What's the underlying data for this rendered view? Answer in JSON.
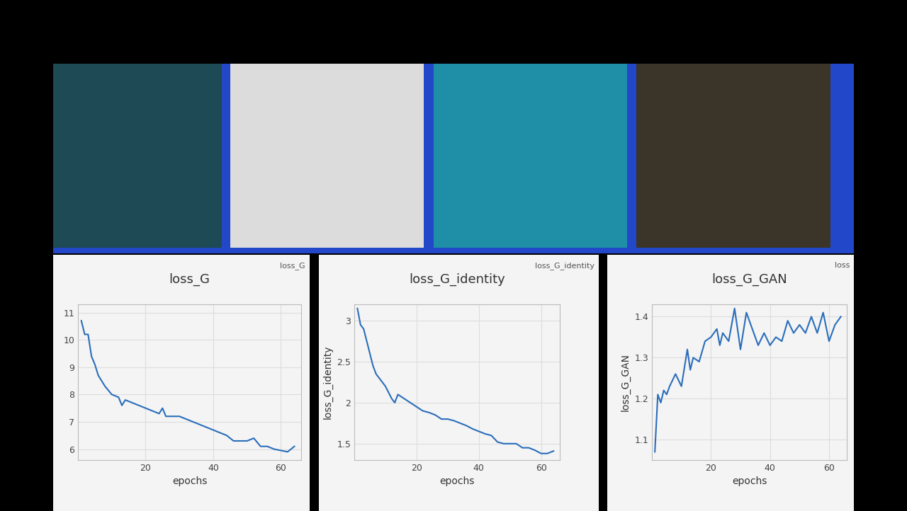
{
  "chart_data": [
    {
      "type": "line",
      "title": "loss_G",
      "x_label": "epochs",
      "annotations": [
        "loss_G"
      ],
      "x": [
        1,
        2,
        3,
        4,
        5,
        6,
        8,
        10,
        12,
        13,
        14,
        16,
        18,
        20,
        22,
        24,
        25,
        26,
        28,
        30,
        32,
        34,
        36,
        38,
        40,
        42,
        44,
        46,
        48,
        50,
        52,
        54,
        56,
        58,
        60,
        62,
        64
      ],
      "values": [
        10.7,
        10.2,
        10.2,
        9.4,
        9.1,
        8.7,
        8.3,
        8.0,
        7.9,
        7.6,
        7.8,
        7.7,
        7.6,
        7.5,
        7.4,
        7.3,
        7.5,
        7.2,
        7.2,
        7.2,
        7.1,
        7.0,
        6.9,
        6.8,
        6.7,
        6.6,
        6.5,
        6.3,
        6.3,
        6.3,
        6.4,
        6.1,
        6.1,
        6.0,
        5.95,
        5.9,
        6.1
      ],
      "color": "#2a6ebb",
      "xlim": [
        0,
        66
      ],
      "xticks": [
        20,
        40,
        60
      ],
      "ylim": [
        5.6,
        11.3
      ],
      "yticks": [
        6,
        7,
        8,
        9,
        10,
        11
      ],
      "grid": true
    },
    {
      "type": "line",
      "title": "loss_G_identity",
      "x_label": "epochs",
      "y_label": "loss_G_identity",
      "annotations": [
        "loss_G_identity"
      ],
      "x": [
        1,
        2,
        3,
        4,
        5,
        6,
        7,
        8,
        10,
        12,
        13,
        14,
        16,
        18,
        20,
        22,
        24,
        26,
        28,
        30,
        32,
        34,
        36,
        38,
        40,
        42,
        44,
        46,
        48,
        50,
        52,
        54,
        56,
        58,
        60,
        62,
        64
      ],
      "values": [
        3.15,
        2.95,
        2.9,
        2.75,
        2.6,
        2.45,
        2.35,
        2.3,
        2.2,
        2.05,
        2.0,
        2.1,
        2.05,
        2.0,
        1.95,
        1.9,
        1.88,
        1.85,
        1.8,
        1.8,
        1.78,
        1.75,
        1.72,
        1.68,
        1.65,
        1.62,
        1.6,
        1.52,
        1.5,
        1.5,
        1.5,
        1.45,
        1.45,
        1.42,
        1.38,
        1.38,
        1.41
      ],
      "color": "#2a6ebb",
      "xlim": [
        0,
        66
      ],
      "xticks": [
        20,
        40,
        60
      ],
      "ylim": [
        1.3,
        3.2
      ],
      "yticks": [
        1.5,
        2,
        2.5,
        3
      ],
      "grid": true
    },
    {
      "type": "line",
      "title": "loss_G_GAN",
      "x_label": "epochs",
      "y_label": "loss_G_GAN",
      "annotations": [
        "loss"
      ],
      "x": [
        1,
        2,
        3,
        4,
        5,
        6,
        8,
        10,
        12,
        13,
        14,
        16,
        18,
        20,
        22,
        23,
        24,
        26,
        28,
        29,
        30,
        32,
        34,
        36,
        38,
        40,
        42,
        44,
        46,
        48,
        50,
        52,
        54,
        56,
        58,
        60,
        62,
        64
      ],
      "values": [
        1.07,
        1.21,
        1.19,
        1.22,
        1.21,
        1.23,
        1.26,
        1.23,
        1.32,
        1.27,
        1.3,
        1.29,
        1.34,
        1.35,
        1.37,
        1.33,
        1.36,
        1.34,
        1.42,
        1.37,
        1.32,
        1.41,
        1.37,
        1.33,
        1.36,
        1.33,
        1.35,
        1.34,
        1.39,
        1.36,
        1.38,
        1.36,
        1.4,
        1.36,
        1.41,
        1.34,
        1.38,
        1.4
      ],
      "color": "#2a6ebb",
      "xlim": [
        0,
        66
      ],
      "xticks": [
        20,
        40,
        60
      ],
      "ylim": [
        1.05,
        1.43
      ],
      "yticks": [
        1.1,
        1.2,
        1.3,
        1.4
      ],
      "grid": true
    }
  ]
}
